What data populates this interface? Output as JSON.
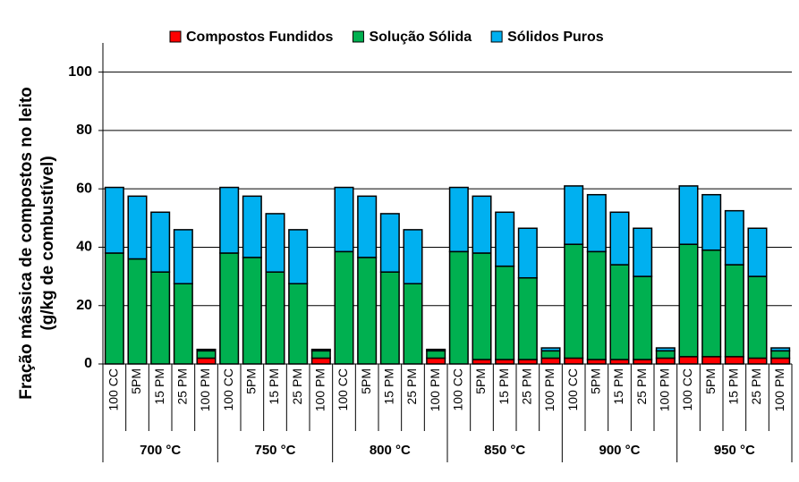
{
  "chart_data": {
    "type": "stacked-bar",
    "ylabel": [
      "Fração mássica de compostos no leito",
      "(g/kg de combustível)"
    ],
    "categories": [
      "100 CC",
      "5PM",
      "15 PM",
      "25 PM",
      "100 PM",
      "100 CC",
      "5PM",
      "15 PM",
      "25 PM",
      "100 PM",
      "100 CC",
      "5PM",
      "15 PM",
      "25 PM",
      "100 PM",
      "100 CC",
      "5PM",
      "15 PM",
      "25 PM",
      "100 PM",
      "100 CC",
      "5PM",
      "15 PM",
      "25 PM",
      "100 PM",
      "100 CC",
      "5PM",
      "15 PM",
      "25 PM",
      "100 PM"
    ],
    "groups": [
      "700 °C",
      "750 °C",
      "800 °C",
      "850 °C",
      "900 °C",
      "950 °C"
    ],
    "series": [
      {
        "name": "Compostos Fundidos",
        "color": "#ff0000",
        "values": [
          0,
          0,
          0,
          0,
          2,
          0,
          0,
          0,
          0,
          2,
          0,
          0,
          0,
          0,
          2,
          0,
          1.5,
          1.5,
          1.5,
          2,
          2,
          1.5,
          1.5,
          1.5,
          2,
          2.5,
          2.5,
          2.5,
          2,
          2
        ]
      },
      {
        "name": "Solução Sólida",
        "color": "#00b050",
        "values": [
          38,
          36,
          31.5,
          27.5,
          2.5,
          38,
          36.5,
          31.5,
          27.5,
          2.5,
          38.5,
          36.5,
          31.5,
          27.5,
          2.5,
          38.5,
          36.5,
          32,
          28,
          2.5,
          39,
          37,
          32.5,
          28.5,
          2.5,
          38.5,
          36.5,
          31.5,
          28,
          2.5
        ]
      },
      {
        "name": "Sólidos Puros",
        "color": "#00b0f0",
        "values": [
          22.5,
          21.5,
          20.5,
          18.5,
          0.5,
          22.5,
          21,
          20,
          18.5,
          0.5,
          22,
          21,
          20,
          18.5,
          0.5,
          22,
          19.5,
          18.5,
          17,
          1,
          20,
          19.5,
          18,
          16.5,
          1,
          20,
          19,
          18.5,
          16.5,
          1
        ]
      }
    ],
    "ylim": [
      0,
      110
    ],
    "yticks": [
      0,
      20,
      40,
      60,
      80,
      100
    ],
    "grid": true,
    "legend": "top"
  }
}
